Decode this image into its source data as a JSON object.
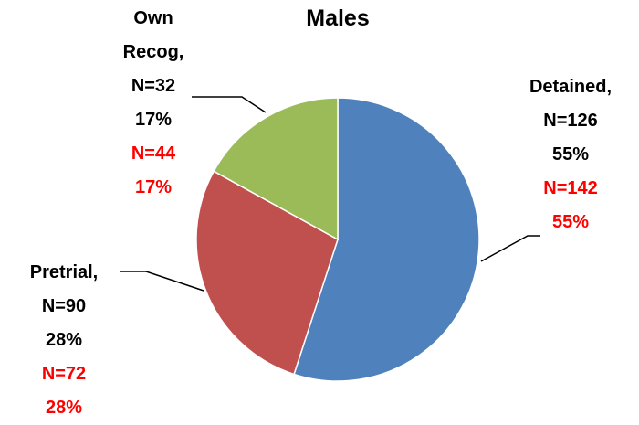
{
  "chart_data": {
    "type": "pie",
    "title": "Males",
    "categories": [
      "Detained,",
      "Pretrial,",
      "Own Recog,"
    ],
    "colors": [
      "#4f81bd",
      "#c0504d",
      "#9bbb59"
    ],
    "series": [
      {
        "color": "#000000",
        "values": [
          55,
          28,
          17
        ],
        "value_labels": [
          "55%",
          "28%",
          "17%"
        ],
        "count_labels": [
          "N=126",
          "N=90",
          "N=32"
        ]
      },
      {
        "color": "#ff0000",
        "values": [
          55,
          28,
          17
        ],
        "value_labels": [
          "55%",
          "28%",
          "17%"
        ],
        "count_labels": [
          "N=142",
          "N=72",
          "N=44"
        ]
      }
    ]
  }
}
